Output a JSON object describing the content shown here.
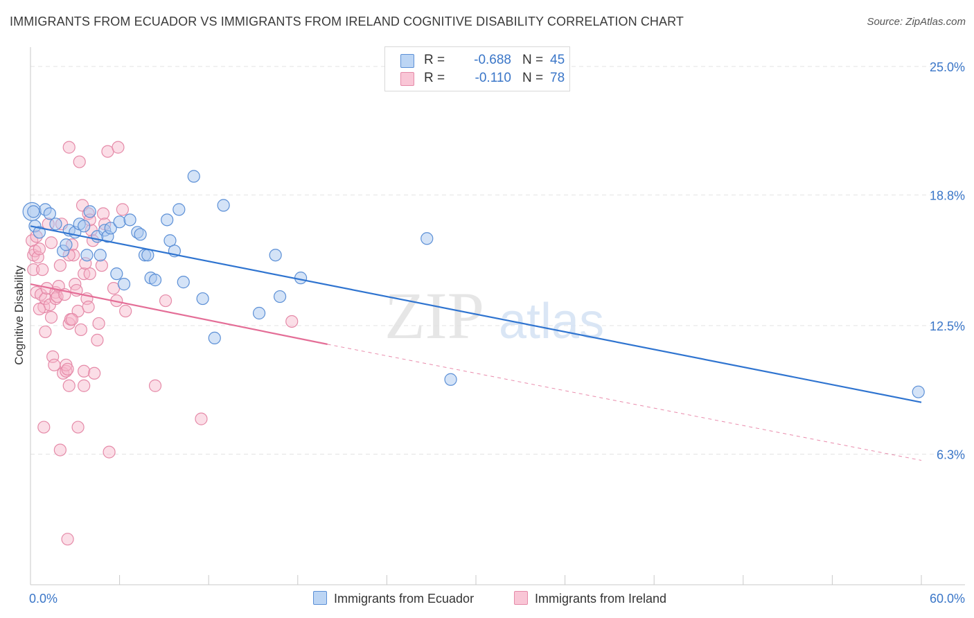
{
  "title": "IMMIGRANTS FROM ECUADOR VS IMMIGRANTS FROM IRELAND COGNITIVE DISABILITY CORRELATION CHART",
  "source": "Source: ZipAtlas.com",
  "watermark": {
    "zip": "ZIP",
    "atlas": "atlas"
  },
  "legend": {
    "rows": [
      {
        "r_label": "R =",
        "r_value": "-0.688",
        "n_label": "N =",
        "n_value": "45"
      },
      {
        "r_label": "R =",
        "r_value": "-0.110",
        "n_label": "N =",
        "n_value": "78"
      }
    ]
  },
  "colors": {
    "ecuador_fill": "#a9c8f0",
    "ecuador_stroke": "#5b8fd6",
    "ecuador_line": "#2f74d0",
    "ireland_fill": "#f7b6ca",
    "ireland_stroke": "#e58aa8",
    "ireland_line": "#e46e97",
    "tick_label": "#3a76c8",
    "grid": "#e3e3e3"
  },
  "chart_data": {
    "type": "scatter",
    "title": "IMMIGRANTS FROM ECUADOR VS IMMIGRANTS FROM IRELAND COGNITIVE DISABILITY CORRELATION CHART",
    "xlabel": "",
    "ylabel": "Cognitive Disability",
    "xlim": [
      0,
      60
    ],
    "ylim": [
      0,
      26.2
    ],
    "x_tick_labels": [
      "0.0%",
      "60.0%"
    ],
    "y_ticks": [
      6.3,
      12.5,
      18.8,
      25.0
    ],
    "y_tick_labels": [
      "6.3%",
      "12.5%",
      "18.8%",
      "25.0%"
    ],
    "grid": true,
    "legend_position": "top-center",
    "series": [
      {
        "name": "Immigrants from Ecuador",
        "points": [
          [
            0.2,
            18.0
          ],
          [
            0.3,
            17.3
          ],
          [
            0.6,
            17.0
          ],
          [
            1.0,
            18.1
          ],
          [
            1.3,
            17.9
          ],
          [
            1.7,
            17.4
          ],
          [
            2.2,
            16.1
          ],
          [
            2.4,
            16.4
          ],
          [
            2.6,
            17.1
          ],
          [
            3.0,
            17.0
          ],
          [
            3.3,
            17.4
          ],
          [
            3.6,
            17.3
          ],
          [
            3.8,
            15.9
          ],
          [
            4.0,
            18.0
          ],
          [
            4.5,
            16.8
          ],
          [
            4.7,
            15.9
          ],
          [
            5.0,
            17.1
          ],
          [
            5.2,
            16.8
          ],
          [
            5.4,
            17.2
          ],
          [
            5.8,
            15.0
          ],
          [
            6.0,
            17.5
          ],
          [
            6.3,
            14.5
          ],
          [
            6.7,
            17.6
          ],
          [
            7.2,
            17.0
          ],
          [
            7.4,
            16.9
          ],
          [
            7.7,
            15.9
          ],
          [
            7.9,
            15.9
          ],
          [
            8.1,
            14.8
          ],
          [
            8.4,
            14.7
          ],
          [
            9.2,
            17.6
          ],
          [
            9.4,
            16.6
          ],
          [
            9.7,
            16.1
          ],
          [
            10.0,
            18.1
          ],
          [
            10.3,
            14.6
          ],
          [
            11.0,
            19.7
          ],
          [
            11.6,
            13.8
          ],
          [
            12.4,
            11.9
          ],
          [
            13.0,
            18.3
          ],
          [
            15.4,
            13.1
          ],
          [
            16.5,
            15.9
          ],
          [
            16.8,
            13.9
          ],
          [
            18.2,
            14.8
          ],
          [
            26.7,
            16.7
          ],
          [
            28.3,
            9.9
          ],
          [
            59.8,
            9.3
          ]
        ],
        "trend": {
          "x": [
            0,
            60
          ],
          "y": [
            17.3,
            8.8
          ]
        }
      },
      {
        "name": "Immigrants from Ireland",
        "points": [
          [
            0.1,
            16.6
          ],
          [
            0.2,
            15.9
          ],
          [
            0.2,
            15.2
          ],
          [
            0.3,
            16.1
          ],
          [
            0.4,
            14.1
          ],
          [
            0.4,
            16.8
          ],
          [
            0.5,
            15.8
          ],
          [
            0.6,
            16.2
          ],
          [
            0.7,
            14.0
          ],
          [
            0.8,
            15.2
          ],
          [
            0.9,
            13.4
          ],
          [
            1.0,
            13.8
          ],
          [
            1.0,
            12.2
          ],
          [
            1.1,
            14.3
          ],
          [
            1.2,
            17.4
          ],
          [
            1.3,
            13.5
          ],
          [
            1.4,
            12.9
          ],
          [
            1.5,
            11.0
          ],
          [
            1.6,
            10.6
          ],
          [
            1.7,
            14.1
          ],
          [
            1.7,
            13.8
          ],
          [
            1.8,
            13.9
          ],
          [
            1.9,
            14.4
          ],
          [
            2.0,
            15.4
          ],
          [
            2.0,
            6.5
          ],
          [
            2.1,
            17.4
          ],
          [
            2.2,
            10.2
          ],
          [
            2.3,
            14.0
          ],
          [
            2.4,
            10.3
          ],
          [
            2.4,
            10.6
          ],
          [
            2.5,
            10.4
          ],
          [
            2.5,
            2.2
          ],
          [
            2.6,
            12.6
          ],
          [
            2.6,
            9.6
          ],
          [
            2.6,
            21.1
          ],
          [
            2.7,
            12.8
          ],
          [
            2.8,
            16.4
          ],
          [
            2.9,
            15.9
          ],
          [
            3.0,
            14.5
          ],
          [
            3.1,
            14.2
          ],
          [
            3.2,
            13.2
          ],
          [
            3.3,
            20.4
          ],
          [
            3.4,
            12.3
          ],
          [
            3.5,
            18.3
          ],
          [
            3.6,
            10.3
          ],
          [
            3.6,
            15.0
          ],
          [
            3.6,
            9.6
          ],
          [
            3.7,
            15.5
          ],
          [
            3.8,
            13.8
          ],
          [
            3.9,
            13.4
          ],
          [
            3.9,
            17.9
          ],
          [
            4.0,
            15.0
          ],
          [
            4.1,
            17.1
          ],
          [
            4.2,
            16.6
          ],
          [
            4.3,
            10.2
          ],
          [
            4.5,
            11.8
          ],
          [
            4.6,
            12.6
          ],
          [
            4.8,
            15.4
          ],
          [
            4.9,
            17.9
          ],
          [
            5.0,
            17.4
          ],
          [
            5.2,
            20.9
          ],
          [
            5.3,
            6.4
          ],
          [
            5.6,
            14.3
          ],
          [
            5.8,
            13.7
          ],
          [
            5.9,
            21.1
          ],
          [
            6.2,
            18.1
          ],
          [
            6.4,
            13.2
          ],
          [
            8.4,
            9.6
          ],
          [
            9.1,
            13.7
          ],
          [
            11.5,
            8.0
          ],
          [
            0.9,
            7.6
          ],
          [
            2.6,
            15.9
          ],
          [
            17.6,
            12.7
          ],
          [
            1.4,
            16.5
          ],
          [
            0.6,
            13.3
          ],
          [
            3.2,
            7.6
          ],
          [
            2.8,
            12.8
          ],
          [
            4.0,
            17.6
          ]
        ],
        "trend": {
          "x": [
            0,
            20
          ],
          "y": [
            14.5,
            11.6
          ]
        },
        "trend_dashed": {
          "x": [
            20,
            60
          ],
          "y": [
            11.6,
            6.0
          ]
        }
      }
    ]
  },
  "bottom_legend": [
    "Immigrants from Ecuador",
    "Immigrants from Ireland"
  ]
}
